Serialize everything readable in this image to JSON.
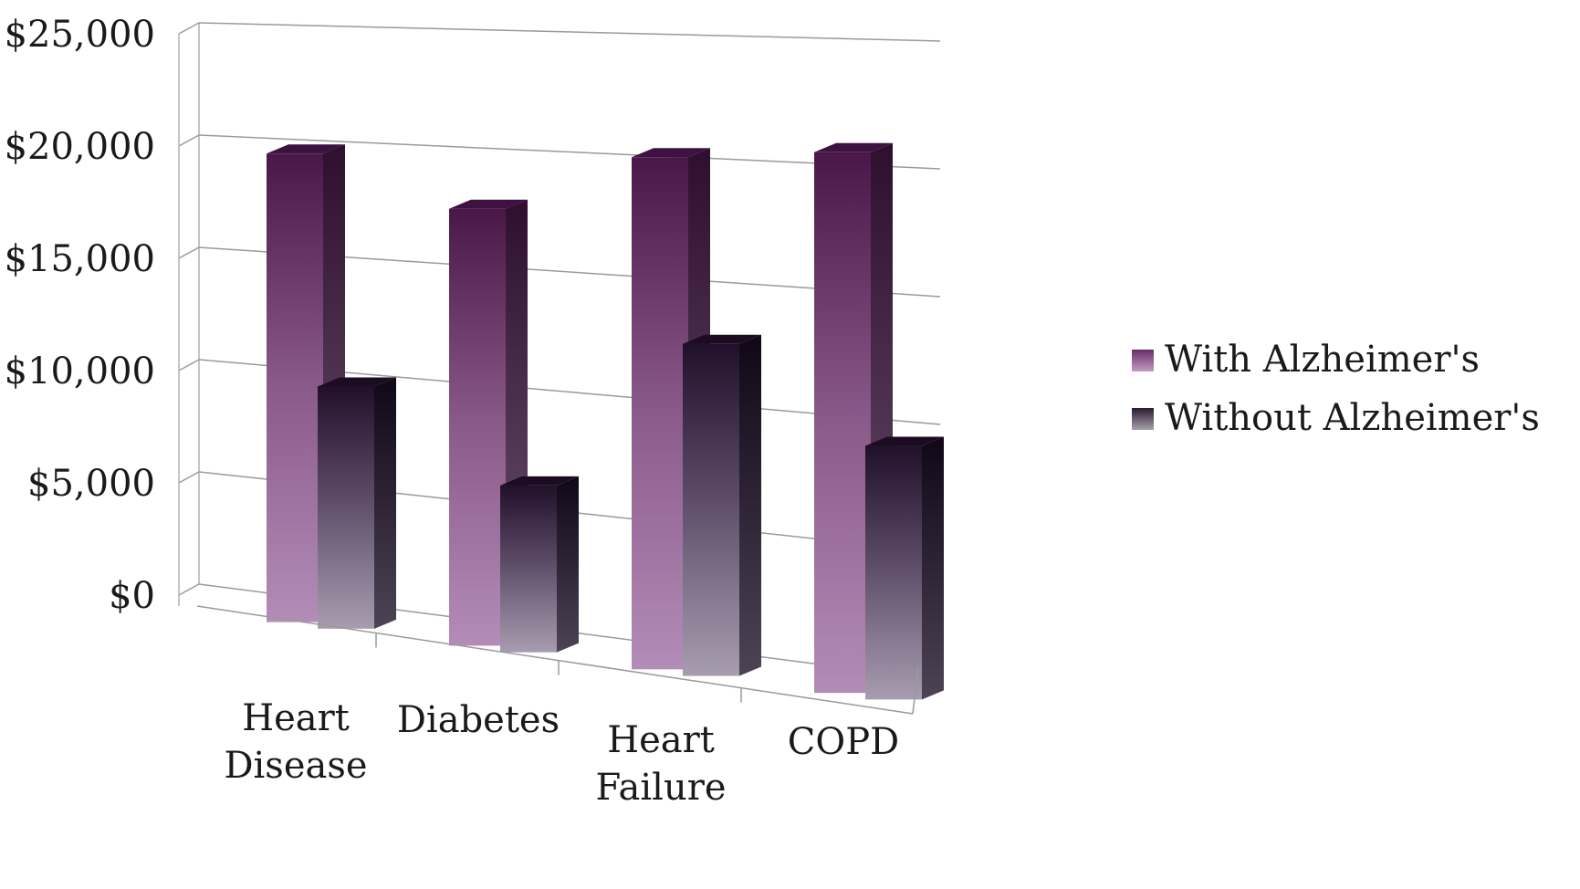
{
  "chart_data": {
    "type": "bar",
    "style": "3d-clustered-column",
    "title": "",
    "xlabel": "",
    "ylabel": "",
    "categories": [
      [
        "Heart",
        "Disease"
      ],
      [
        "Diabetes"
      ],
      [
        "Heart",
        "Failure"
      ],
      [
        "COPD"
      ]
    ],
    "series": [
      {
        "name": "With Alzheimer's",
        "values": [
          20500,
          18500,
          21000,
          21500
        ],
        "color": "#8b4a86"
      },
      {
        "name": "Without Alzheimer's",
        "values": [
          10500,
          7000,
          13500,
          10000
        ],
        "color": "#4a3550"
      }
    ],
    "ylim": [
      0,
      25000
    ],
    "yticks": [
      "$0",
      "$5,000",
      "$10,000",
      "$15,000",
      "$20,000",
      "$25,000"
    ],
    "grid": true,
    "legend_position": "right"
  }
}
